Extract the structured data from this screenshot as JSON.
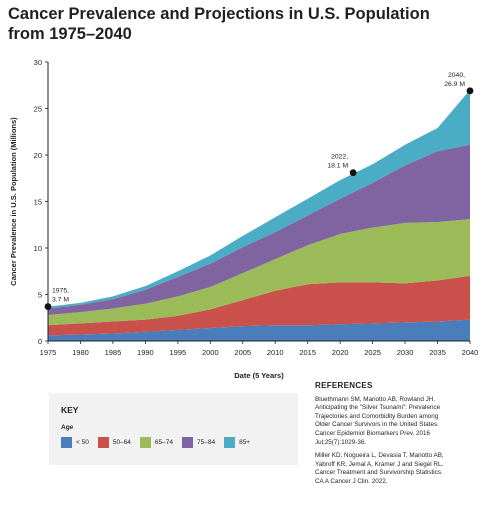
{
  "title_lines": [
    "Cancer Prevalence and Projections in U.S. Population",
    "from 1975–2040"
  ],
  "chart_data": {
    "type": "area",
    "stacked": true,
    "x": [
      1975,
      1980,
      1985,
      1990,
      1995,
      2000,
      2005,
      2010,
      2015,
      2020,
      2025,
      2030,
      2035,
      2040
    ],
    "series": [
      {
        "name": "< 50",
        "color": "#4a7ebb",
        "values": [
          0.6,
          0.7,
          0.8,
          1.0,
          1.2,
          1.4,
          1.6,
          1.7,
          1.7,
          1.8,
          1.9,
          2.0,
          2.1,
          2.3
        ]
      },
      {
        "name": "50–64",
        "color": "#c9504b",
        "values": [
          1.1,
          1.2,
          1.3,
          1.3,
          1.5,
          2.0,
          2.8,
          3.7,
          4.4,
          4.5,
          4.4,
          4.2,
          4.4,
          4.7
        ]
      },
      {
        "name": "65–74",
        "color": "#9bbb59",
        "values": [
          1.1,
          1.2,
          1.4,
          1.7,
          2.1,
          2.4,
          2.9,
          3.4,
          4.2,
          5.2,
          5.9,
          6.5,
          6.3,
          6.1
        ]
      },
      {
        "name": "75–84",
        "color": "#8064a2",
        "values": [
          0.7,
          0.8,
          1.0,
          1.5,
          2.1,
          2.5,
          2.8,
          2.9,
          3.2,
          3.8,
          4.8,
          6.2,
          7.6,
          8.0
        ]
      },
      {
        "name": "85+",
        "color": "#4bacc6",
        "values": [
          0.2,
          0.2,
          0.3,
          0.4,
          0.6,
          0.9,
          1.2,
          1.6,
          1.8,
          2.0,
          2.0,
          2.2,
          2.5,
          5.9
        ]
      }
    ],
    "xlabel": "Date (5 Years)",
    "ylabel": "Cancer Prevalence in U.S. Population (Millions)",
    "xlim": [
      1975,
      2040
    ],
    "ylim": [
      0,
      30
    ],
    "yticks": [
      0,
      5,
      10,
      15,
      20,
      25,
      30
    ],
    "grid": false,
    "annotations": [
      {
        "x": 1975,
        "y": 3.7,
        "lines": [
          "1975,",
          "3.7 M"
        ],
        "anchor": "right"
      },
      {
        "x": 2022,
        "y": 18.1,
        "lines": [
          "2022,",
          "18.1 M"
        ],
        "anchor": "left"
      },
      {
        "x": 2040,
        "y": 26.9,
        "lines": [
          "2040,",
          "26.9 M"
        ],
        "anchor": "left"
      }
    ]
  },
  "key": {
    "title": "KEY",
    "subtitle": "Age",
    "items": [
      "< 50",
      "50–64",
      "65–74",
      "75–84",
      "85+"
    ],
    "colors": [
      "#4a7ebb",
      "#c9504b",
      "#9bbb59",
      "#8064a2",
      "#4bacc6"
    ]
  },
  "references": {
    "title": "REFERENCES",
    "items": [
      {
        "lines": [
          "Bluethmann SM, Mariotto AB, Rowland JH.",
          "Anticipating the \"Silver Tsunami\": Prevalence",
          "Trajectories and Comorbidity Burden among",
          "Older Cancer Survivors in the United States.",
          "Cancer Epidemiol Biomarkers Prev. 2016",
          "Jul;25(7):1029-36."
        ]
      },
      {
        "lines": [
          "Miller KD, Nogueira L, Devasia T, Mariotto AB,",
          "Yabroff KR, Jemal A, Kramer J and Siegel RL.",
          "Cancer Treatment and Survivorship Statistics.",
          "CA A Cancer J Clin. 2022."
        ]
      }
    ]
  }
}
